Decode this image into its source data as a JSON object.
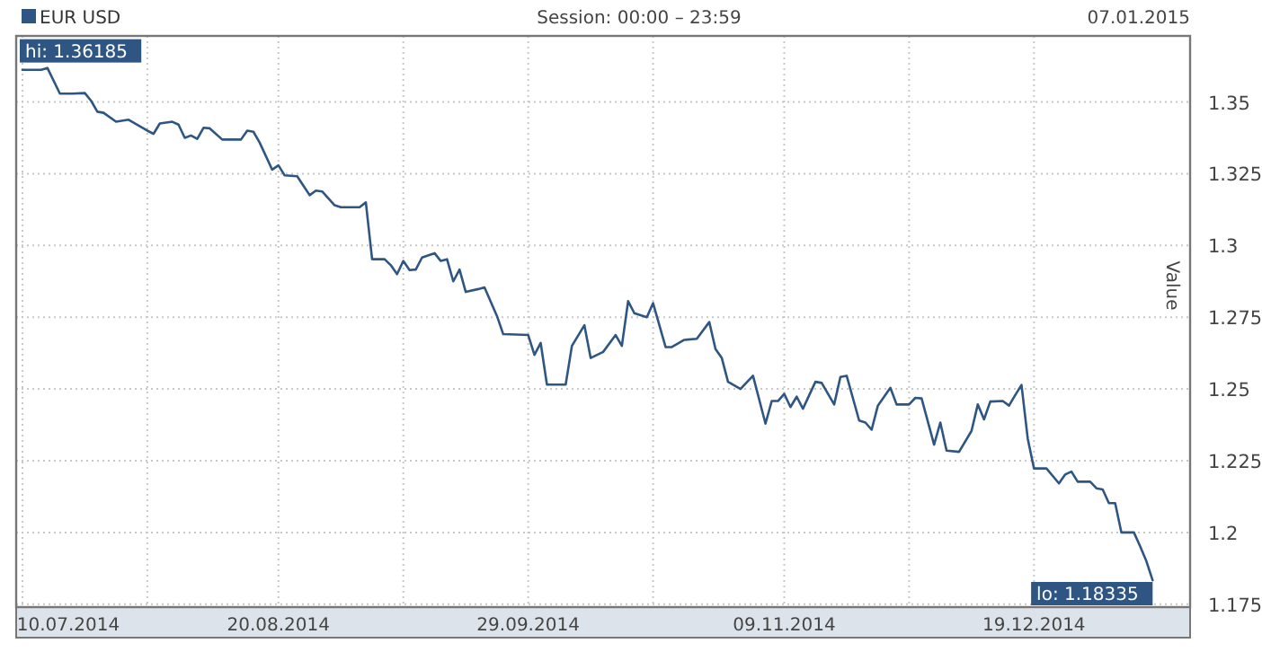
{
  "chart_data": {
    "type": "line",
    "subtitle": "Session: 00:00 – 23:59",
    "ylabel": "Value",
    "annotations": [
      "07.01.2015",
      {
        "text": "hi: 1.36185",
        "x": "2014-07-14",
        "y": 1.36185
      },
      {
        "text": "lo: 1.18335",
        "x": "2015-01-07",
        "y": 1.18335
      }
    ],
    "xlim": [
      "2014-07-09",
      "2015-01-13"
    ],
    "xticks": [
      {
        "value": "2014-07-10",
        "label": "10.07.2014"
      },
      {
        "value": "2014-07-30",
        "label": null
      },
      {
        "value": "2014-08-20",
        "label": "20.08.2014"
      },
      {
        "value": "2014-09-09",
        "label": null
      },
      {
        "value": "2014-09-29",
        "label": "29.09.2014"
      },
      {
        "value": "2014-10-19",
        "label": null
      },
      {
        "value": "2014-11-09",
        "label": "09.11.2014"
      },
      {
        "value": "2014-11-29",
        "label": null
      },
      {
        "value": "2014-12-19",
        "label": "19.12.2014"
      }
    ],
    "ylim": [
      1.174,
      1.373
    ],
    "yticks": [
      1.175,
      1.2,
      1.225,
      1.25,
      1.275,
      1.3,
      1.325,
      1.35
    ],
    "grid": true,
    "legend": "top left",
    "marker": "none",
    "line_style": "solid",
    "series": [
      {
        "name": "EUR USD",
        "color": "#2f5682",
        "x": [
          "2014-07-10",
          "2014-07-13",
          "2014-07-14",
          "2014-07-16",
          "2014-07-18",
          "2014-07-20",
          "2014-07-21",
          "2014-07-22",
          "2014-07-23",
          "2014-07-25",
          "2014-07-27",
          "2014-07-30",
          "2014-07-31",
          "2014-08-01",
          "2014-08-03",
          "2014-08-04",
          "2014-08-05",
          "2014-08-06",
          "2014-08-07",
          "2014-08-08",
          "2014-08-09",
          "2014-08-11",
          "2014-08-14",
          "2014-08-15",
          "2014-08-16",
          "2014-08-17",
          "2014-08-19",
          "2014-08-20",
          "2014-08-21",
          "2014-08-23",
          "2014-08-24",
          "2014-08-25",
          "2014-08-26",
          "2014-08-27",
          "2014-08-29",
          "2014-08-30",
          "2014-09-02",
          "2014-09-03",
          "2014-09-04",
          "2014-09-06",
          "2014-09-07",
          "2014-09-08",
          "2014-09-09",
          "2014-09-10",
          "2014-09-11",
          "2014-09-12",
          "2014-09-14",
          "2014-09-15",
          "2014-09-16",
          "2014-09-17",
          "2014-09-18",
          "2014-09-19",
          "2014-09-21",
          "2014-09-22",
          "2014-09-24",
          "2014-09-25",
          "2014-09-29",
          "2014-09-30",
          "2014-10-01",
          "2014-10-02",
          "2014-10-05",
          "2014-10-06",
          "2014-10-08",
          "2014-10-09",
          "2014-10-11",
          "2014-10-13",
          "2014-10-14",
          "2014-10-15",
          "2014-10-16",
          "2014-10-18",
          "2014-10-19",
          "2014-10-21",
          "2014-10-22",
          "2014-10-24",
          "2014-10-26",
          "2014-10-28",
          "2014-10-29",
          "2014-10-30",
          "2014-10-31",
          "2014-11-02",
          "2014-11-04",
          "2014-11-06",
          "2014-11-07",
          "2014-11-08",
          "2014-11-09",
          "2014-11-10",
          "2014-11-11",
          "2014-11-12",
          "2014-11-14",
          "2014-11-15",
          "2014-11-17",
          "2014-11-18",
          "2014-11-19",
          "2014-11-21",
          "2014-11-22",
          "2014-11-23",
          "2014-11-24",
          "2014-11-26",
          "2014-11-27",
          "2014-11-29",
          "2014-11-30",
          "2014-12-01",
          "2014-12-03",
          "2014-12-04",
          "2014-12-05",
          "2014-12-07",
          "2014-12-09",
          "2014-12-10",
          "2014-12-11",
          "2014-12-12",
          "2014-12-14",
          "2014-12-15",
          "2014-12-16",
          "2014-12-17",
          "2014-12-18",
          "2014-12-19",
          "2014-12-21",
          "2014-12-23",
          "2014-12-24",
          "2014-12-25",
          "2014-12-26",
          "2014-12-28",
          "2014-12-29",
          "2014-12-30",
          "2014-12-31",
          "2015-01-01",
          "2015-01-02",
          "2015-01-04",
          "2015-01-05",
          "2015-01-06",
          "2015-01-07"
        ],
        "values": [
          1.3612,
          1.3612,
          1.36185,
          1.3529,
          1.3529,
          1.3531,
          1.3504,
          1.3466,
          1.3462,
          1.3431,
          1.3438,
          1.34,
          1.3389,
          1.3425,
          1.3431,
          1.3421,
          1.3375,
          1.3383,
          1.3371,
          1.341,
          1.3408,
          1.3369,
          1.3369,
          1.34,
          1.3396,
          1.3358,
          1.3264,
          1.3279,
          1.3244,
          1.3241,
          1.3208,
          1.3175,
          1.3191,
          1.3188,
          1.314,
          1.3133,
          1.3133,
          1.315,
          1.2952,
          1.2952,
          1.2931,
          1.29,
          1.2946,
          1.2914,
          1.2916,
          1.2958,
          1.2973,
          1.2946,
          1.2952,
          1.2875,
          1.2916,
          1.2838,
          1.2848,
          1.2854,
          1.2754,
          1.2691,
          1.2688,
          1.2619,
          1.266,
          1.2515,
          1.2515,
          1.265,
          1.2722,
          1.2608,
          1.2629,
          1.2688,
          1.265,
          1.2806,
          1.2764,
          1.275,
          1.2799,
          1.2646,
          1.2646,
          1.2671,
          1.2675,
          1.2733,
          1.2639,
          1.2608,
          1.2525,
          1.25,
          1.2546,
          1.2379,
          1.2458,
          1.2458,
          1.2483,
          1.2437,
          1.2473,
          1.2431,
          1.2525,
          1.2521,
          1.2446,
          1.2542,
          1.2546,
          1.239,
          1.2383,
          1.2358,
          1.2442,
          1.2504,
          1.2446,
          1.2446,
          1.2469,
          1.2467,
          1.2306,
          1.2383,
          1.2285,
          1.2281,
          1.2354,
          1.2446,
          1.2394,
          1.2456,
          1.2458,
          1.2442,
          1.2479,
          1.2514,
          1.2327,
          1.2223,
          1.2223,
          1.2171,
          1.2202,
          1.2212,
          1.2177,
          1.2177,
          1.2154,
          1.215,
          1.2102,
          1.2102,
          1.2,
          1.2,
          1.1952,
          1.19,
          1.18335
        ]
      }
    ]
  }
}
